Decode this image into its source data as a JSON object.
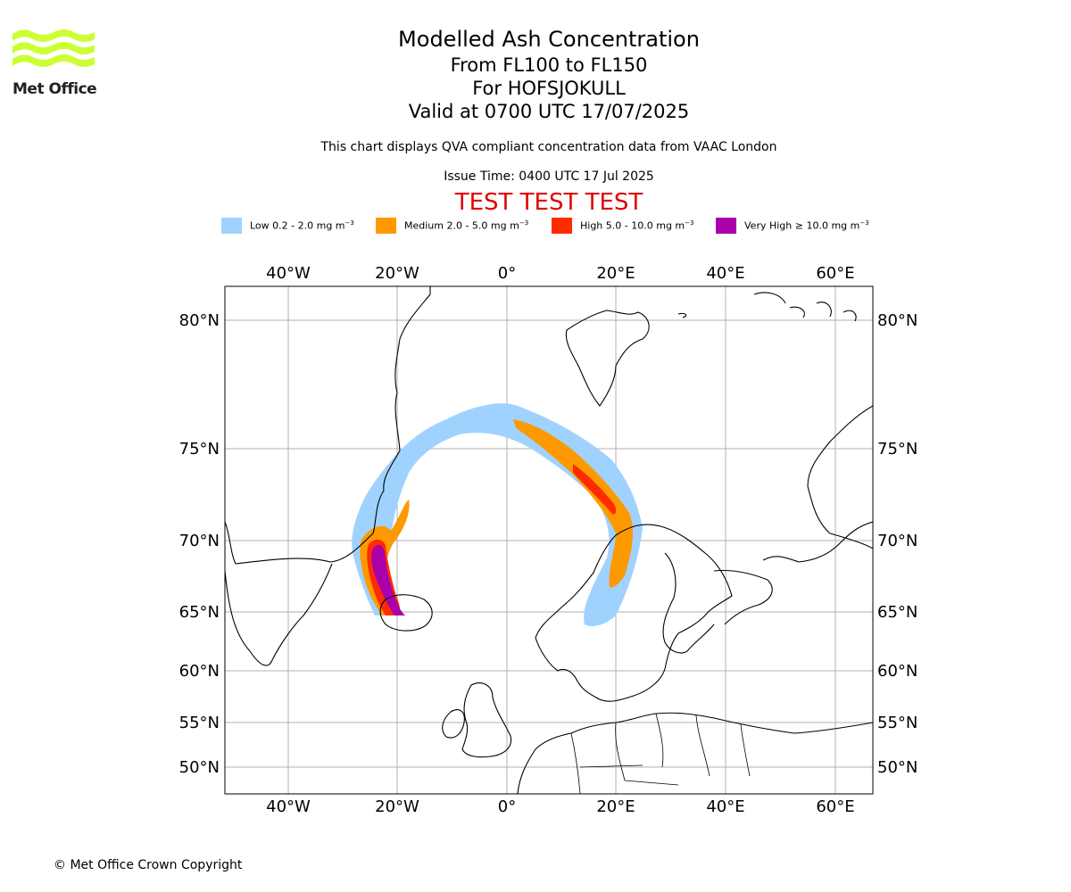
{
  "header": {
    "title": "Modelled Ash Concentration",
    "levels": "From FL100 to FL150",
    "volcano": "For HOFSJOKULL",
    "valid": "Valid at 0700 UTC 17/07/2025",
    "description": "This chart displays QVA compliant concentration data from VAAC London",
    "issue_time": "Issue Time: 0400 UTC 17 Jul 2025",
    "test_banner": "TEST TEST TEST"
  },
  "logo": {
    "text": "Met Office",
    "color": "#ccff33"
  },
  "legend": [
    {
      "label": "Low 0.2 - 2.0 mg m",
      "exp": "−3",
      "color": "#a0d2ff"
    },
    {
      "label": "Medium 2.0 - 5.0 mg m",
      "exp": "−3",
      "color": "#ff9900"
    },
    {
      "label": "High 5.0 - 10.0 mg m",
      "exp": "−3",
      "color": "#ff2b00"
    },
    {
      "label": "Very High  ≥  10.0 mg m",
      "exp": "−3",
      "color": "#aa00aa"
    }
  ],
  "map": {
    "lon_labels": [
      "40°W",
      "20°W",
      "0°",
      "20°E",
      "40°E",
      "60°E"
    ],
    "lat_labels": [
      "80°N",
      "75°N",
      "70°N",
      "65°N",
      "60°N",
      "55°N",
      "50°N"
    ],
    "grid": true
  },
  "footer": {
    "copyright": "© Met Office Crown Copyright"
  }
}
